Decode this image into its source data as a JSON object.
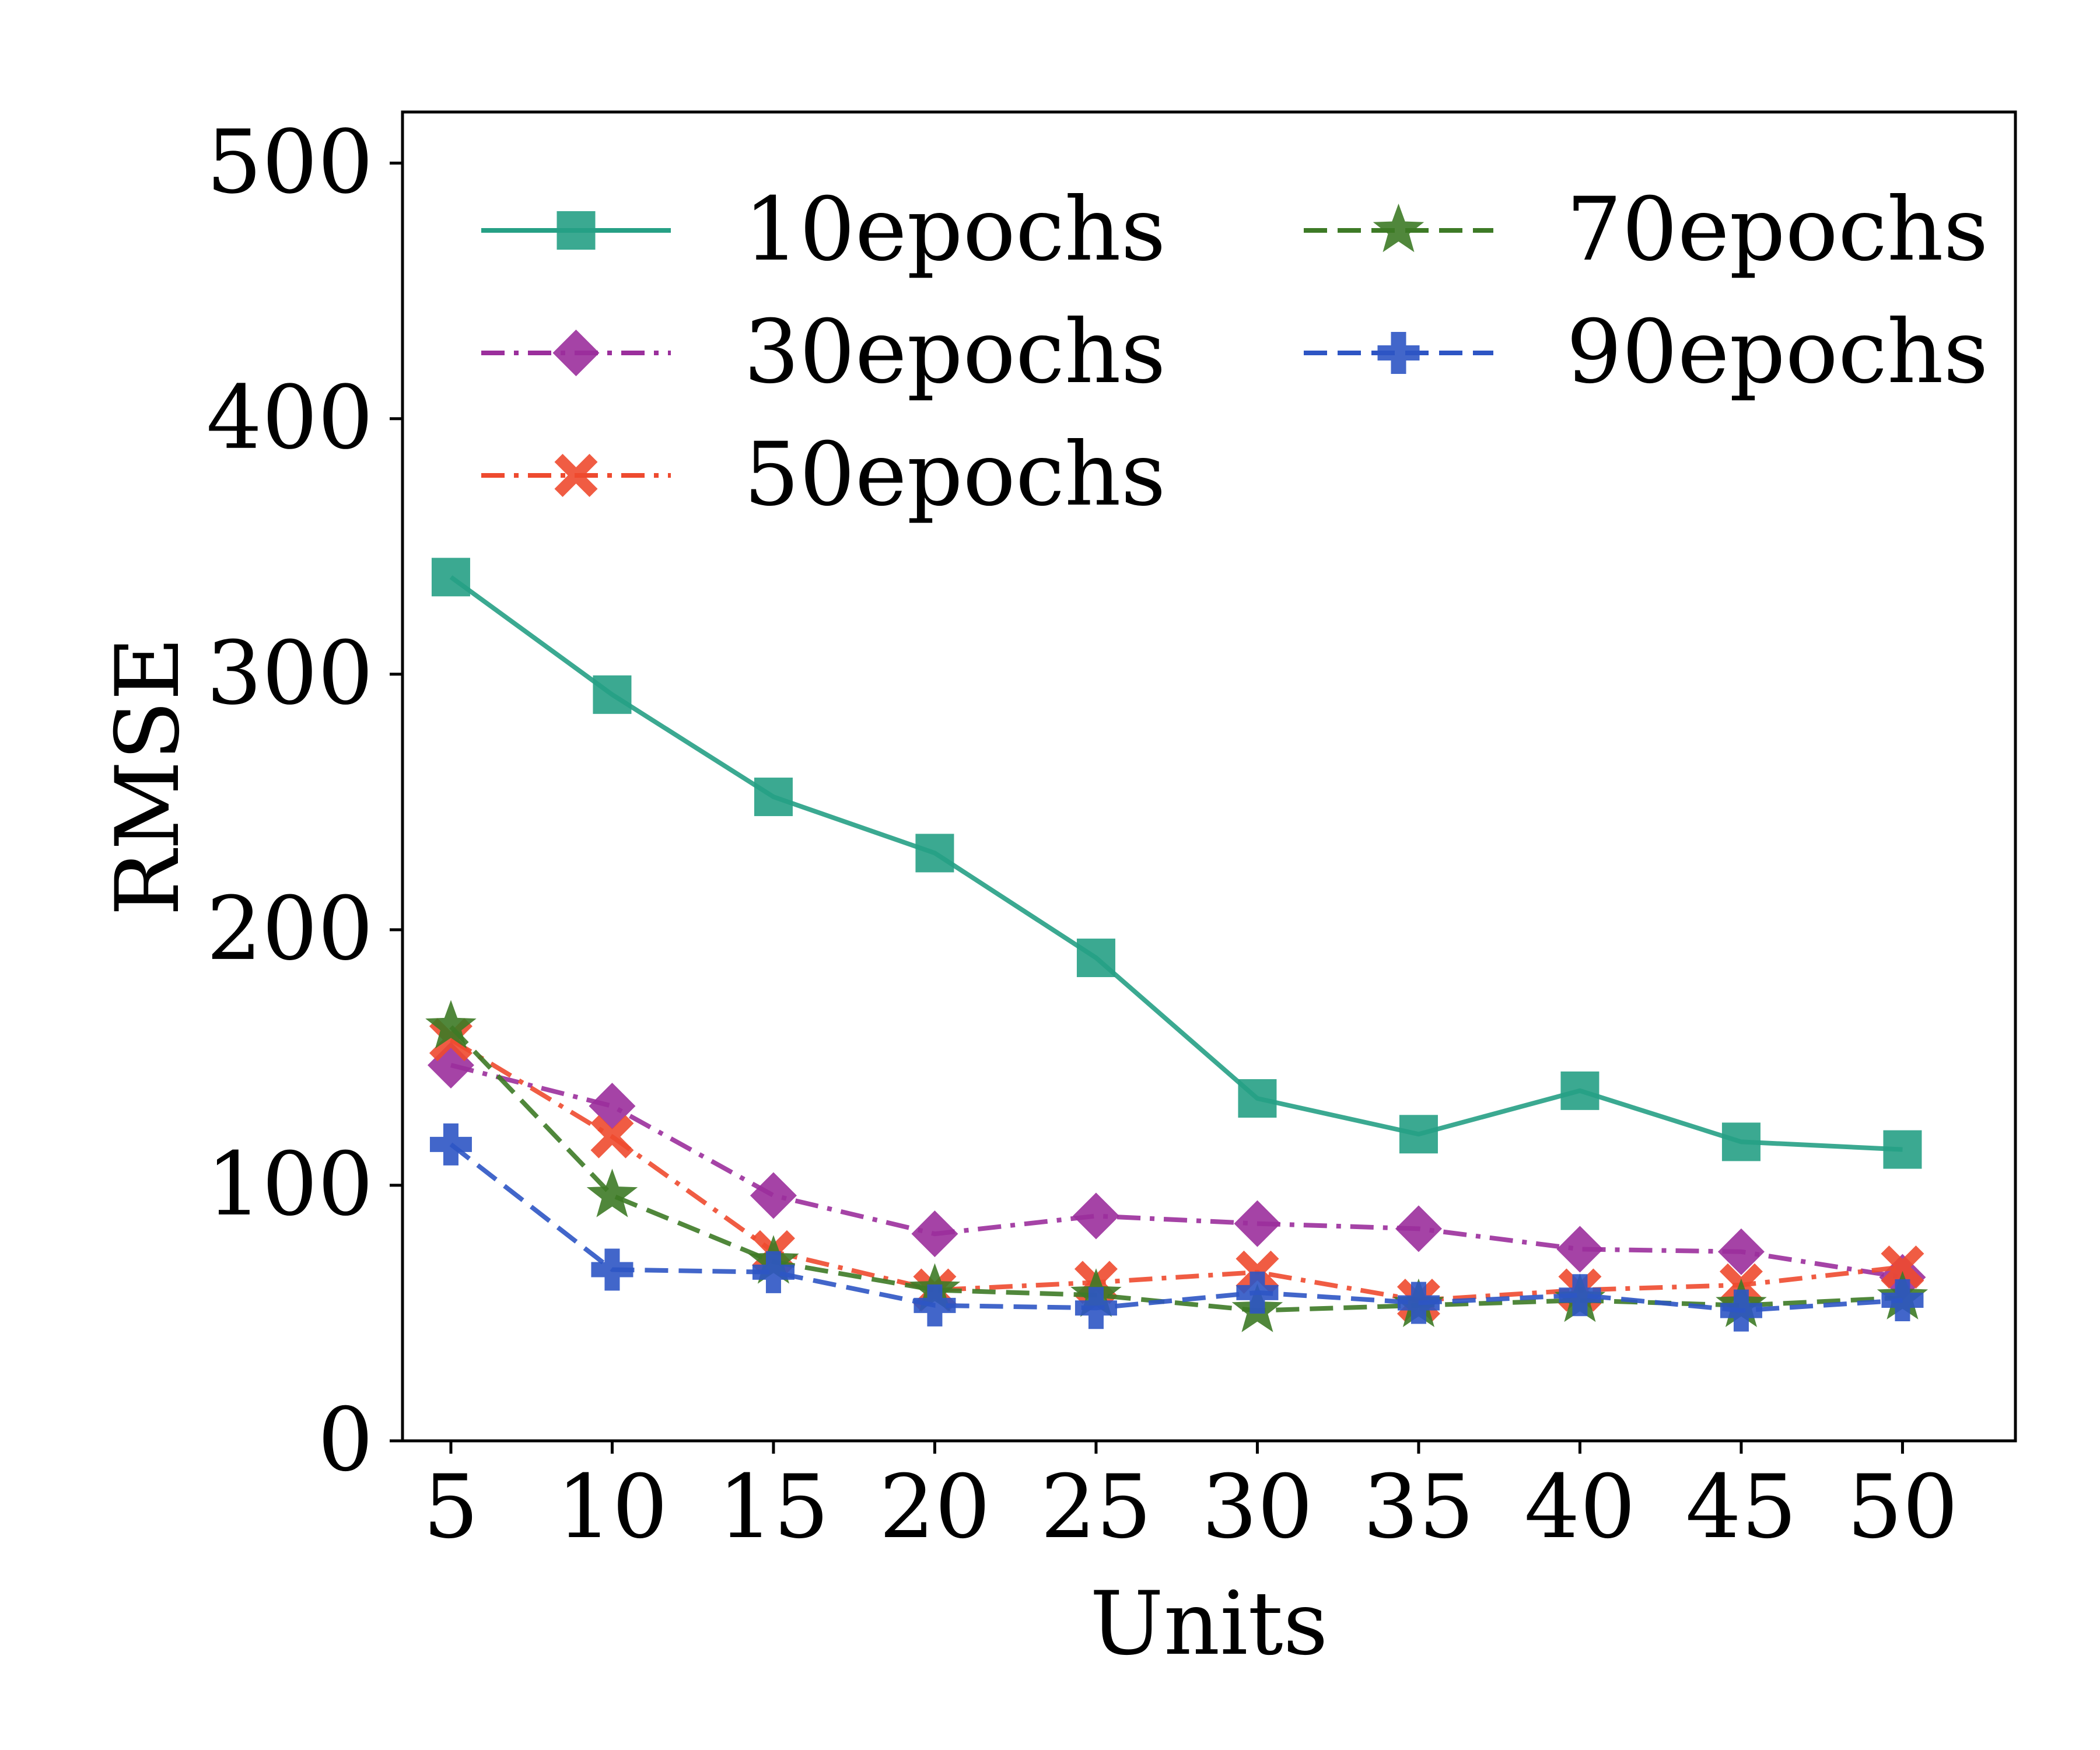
{
  "chart_data": {
    "type": "line",
    "title": "",
    "xlabel": "Units",
    "ylabel": "RMSE",
    "x": [
      5,
      10,
      15,
      20,
      25,
      30,
      35,
      40,
      45,
      50
    ],
    "xticks": [
      "5",
      "10",
      "15",
      "20",
      "25",
      "30",
      "35",
      "40",
      "45",
      "50"
    ],
    "yticks": [
      "0",
      "100",
      "200",
      "300",
      "400",
      "500"
    ],
    "ylim": [
      0,
      520
    ],
    "grid": false,
    "legend_position": "top",
    "series": [
      {
        "name": "10epochs",
        "color": "#26a085",
        "line_style": "solid",
        "marker": "square",
        "values": [
          338,
          292,
          252,
          230,
          189,
          134,
          120,
          137,
          117,
          114
        ]
      },
      {
        "name": "30epochs",
        "color": "#9b2f9c",
        "line_style": "dashdot",
        "marker": "diamond",
        "values": [
          147,
          131,
          96,
          81,
          88,
          85,
          83,
          75,
          74,
          64
        ]
      },
      {
        "name": "50epochs",
        "color": "#ee4a2f",
        "line_style": "dashdot",
        "marker": "x",
        "values": [
          157,
          119,
          74,
          59,
          62,
          66,
          55,
          59,
          61,
          68
        ]
      },
      {
        "name": "70epochs",
        "color": "#3d7a26",
        "line_style": "dashed",
        "marker": "star",
        "values": [
          162,
          96,
          70,
          59,
          57,
          51,
          53,
          55,
          53,
          56
        ]
      },
      {
        "name": "90epochs",
        "color": "#2e55c4",
        "line_style": "dashed",
        "marker": "plus",
        "values": [
          116,
          67,
          66,
          53,
          52,
          58,
          54,
          57,
          51,
          55
        ]
      }
    ]
  }
}
